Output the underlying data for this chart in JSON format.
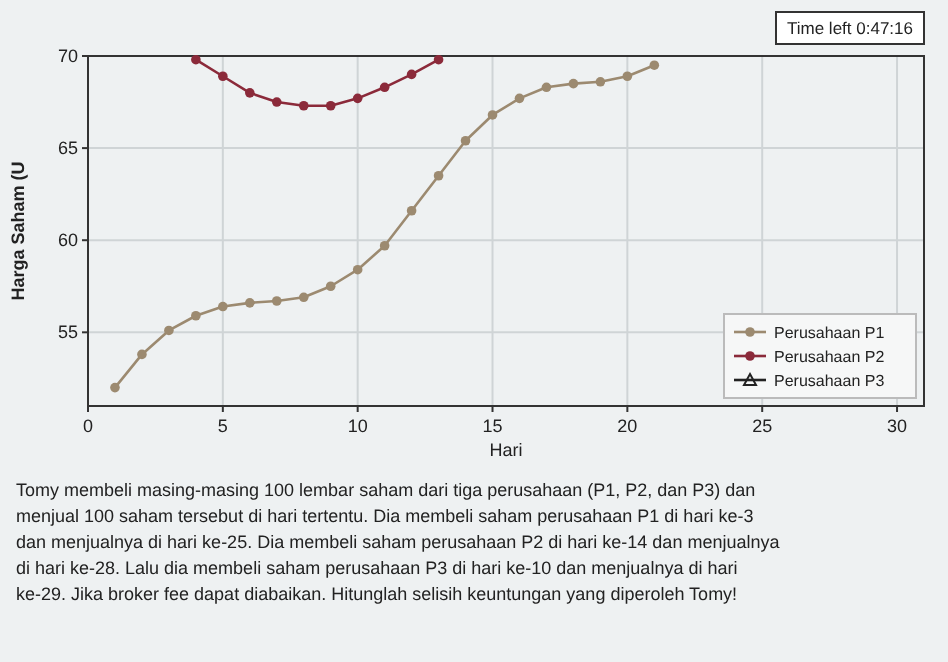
{
  "chart_data": {
    "type": "line",
    "xlabel": "Hari",
    "ylabel": "Harga Saham (U",
    "x": [
      1,
      2,
      3,
      4,
      5,
      6,
      7,
      8,
      9,
      10,
      11,
      12,
      13,
      14,
      15,
      16,
      17,
      18,
      19,
      20,
      21
    ],
    "series": [
      {
        "name": "Perusahaan P1",
        "color": "#9c8a70",
        "values": [
          52.0,
          53.8,
          55.1,
          55.9,
          56.4,
          56.6,
          56.7,
          56.9,
          57.5,
          58.4,
          59.7,
          61.6,
          63.5,
          65.4,
          66.8,
          67.7,
          68.3,
          68.5,
          68.6,
          68.9,
          69.5
        ]
      },
      {
        "name": "Perusahaan P2",
        "color": "#8b2a3a",
        "x": [
          4,
          5,
          6,
          7,
          8,
          9,
          10,
          11,
          12,
          13
        ],
        "values": [
          69.8,
          68.9,
          68.0,
          67.5,
          67.3,
          67.3,
          67.7,
          68.3,
          69.0,
          69.8
        ]
      },
      {
        "name": "Perusahaan P3",
        "color": "#222222",
        "marker": "triangle",
        "values": [
          null,
          null,
          null,
          null,
          null,
          null,
          null,
          null,
          null,
          null,
          null,
          null,
          null,
          null,
          null,
          null,
          null,
          null,
          null,
          null,
          null
        ]
      }
    ],
    "xlim": [
      0,
      31
    ],
    "xticks": [
      0,
      5,
      10,
      15,
      20,
      25,
      30
    ],
    "ylim": [
      51,
      70
    ],
    "yticks": [
      55,
      60,
      65,
      70
    ],
    "grid": true,
    "legend": "bottom right",
    "marker": "circle",
    "annotations": [
      "Time left 0:47:16",
      "Tomy membeli masing-masing 100 lembar saham dari tiga perusahaan (P1, P2, dan P3) dan menjual 100 saham tersebut di hari tertentu. Dia membeli saham perusahaan P1 di hari ke-3 dan menjualnya di hari ke-25. Dia membeli saham perusahaan P2 di hari ke-14 dan menjualnya di hari ke-28. Lalu dia membeli saham perusahaan P3 di hari ke-10 dan menjualnya di hari ke-29. Jika broker fee dapat diabaikan. Hitunglah selisih keuntungan yang diperoleh Tomy!"
    ]
  }
}
